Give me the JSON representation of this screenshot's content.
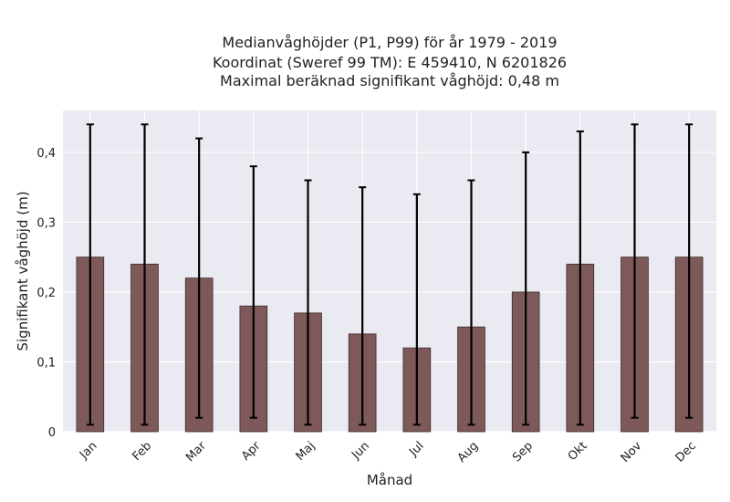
{
  "chart_data": {
    "type": "bar",
    "title_lines": [
      "Medianvåghöjder (P1, P99) för år 1979 - 2019",
      "Koordinat (Sweref 99 TM): E 459410, N 6201826",
      "Maximal beräknad signifikant våghöjd: 0,48 m"
    ],
    "xlabel": "Månad",
    "ylabel": "Signifikant våghöjd (m)",
    "categories": [
      "Jan",
      "Feb",
      "Mar",
      "Apr",
      "Maj",
      "Jun",
      "Jul",
      "Aug",
      "Sep",
      "Okt",
      "Nov",
      "Dec"
    ],
    "values": [
      0.25,
      0.24,
      0.22,
      0.18,
      0.17,
      0.14,
      0.12,
      0.15,
      0.2,
      0.24,
      0.25,
      0.25
    ],
    "error_low": [
      0.01,
      0.01,
      0.02,
      0.02,
      0.01,
      0.01,
      0.01,
      0.01,
      0.01,
      0.01,
      0.02,
      0.02
    ],
    "error_high": [
      0.44,
      0.44,
      0.42,
      0.38,
      0.36,
      0.35,
      0.34,
      0.36,
      0.4,
      0.43,
      0.44,
      0.44
    ],
    "yticks": [
      0,
      0.1,
      0.2,
      0.3,
      0.4
    ],
    "ytick_labels": [
      "0",
      "0,1",
      "0,2",
      "0,3",
      "0,4"
    ],
    "ylim": [
      0,
      0.46
    ],
    "grid": true,
    "colors": {
      "bar": "#7d5959",
      "bar_edge": "#3d2b2b",
      "errorbar": "#000000",
      "plot_bg": "#eaeaf2",
      "grid": "#ffffff"
    }
  }
}
